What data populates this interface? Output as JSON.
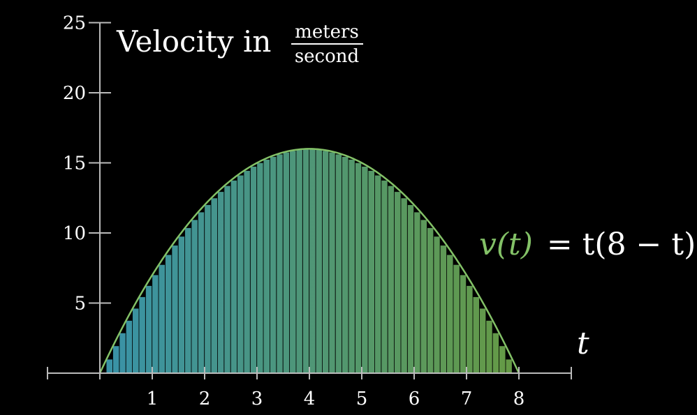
{
  "chart_data": {
    "type": "area",
    "title": {
      "prefix": "Velocity in",
      "unit_numerator": "meters",
      "unit_denominator": "second"
    },
    "xlabel": "t",
    "equation": {
      "lhs": "v(t)",
      "rhs": "= t(8 − t)"
    },
    "function": "t*(8-t)",
    "xlim": [
      -1,
      9
    ],
    "ylim": [
      0,
      25
    ],
    "x_ticks": [
      "1",
      "2",
      "3",
      "4",
      "5",
      "6",
      "7",
      "8"
    ],
    "y_ticks": [
      "5",
      "10",
      "15",
      "20",
      "25"
    ],
    "riemann_dt": 0.125,
    "colors": {
      "curve": "#83c167",
      "fill_start": "#3d9fb8",
      "fill_end": "#6fa84a",
      "axis": "#bbbbbb",
      "text": "#ffffff"
    }
  }
}
